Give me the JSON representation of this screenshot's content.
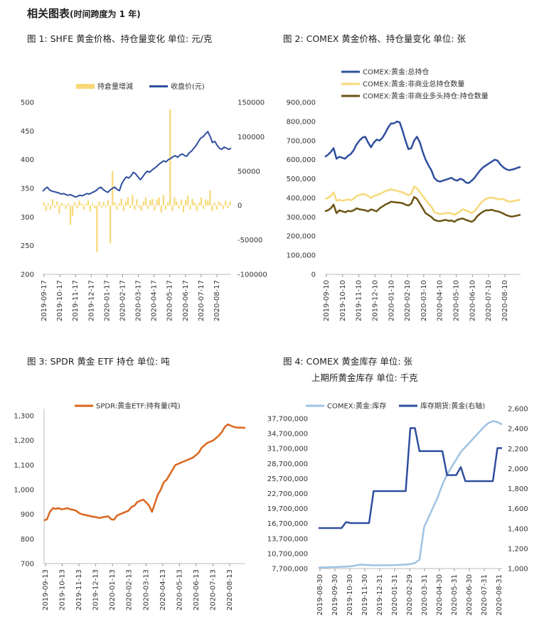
{
  "header": {
    "title": "相关图表",
    "subtitle": "(时间跨度为 1 年)"
  },
  "colors": {
    "dark_blue": "#2f4f9e",
    "light_blue": "#9ec3e3",
    "yellow": "#f7d978",
    "olive": "#6b5414",
    "orange": "#d9661e"
  },
  "chart_data": [
    {
      "id": "c1",
      "type": "line+bar",
      "title": "图 1: SHFE 黄金价格、持仓量变化  单位: 元/克",
      "x_ticks": [
        "2019-09-17",
        "2019-10-17",
        "2019-11-17",
        "2019-12-17",
        "2020-01-17",
        "2020-02-17",
        "2020-03-17",
        "2020-04-17",
        "2020-05-17",
        "2020-06-17",
        "2020-07-17",
        "2020-08-17"
      ],
      "y_left": {
        "min": 200,
        "max": 500,
        "ticks": [
          200,
          250,
          300,
          350,
          400,
          450,
          500
        ]
      },
      "y_right": {
        "min": -100000,
        "max": 150000,
        "ticks": [
          "-100000",
          "-50000",
          "0",
          "50000",
          "100000",
          "150000"
        ]
      },
      "legend": [
        "持倉量增減",
        "收盘价(元)"
      ],
      "bar_series": {
        "name": "持倉量增減",
        "axis": "right",
        "values": [
          5000,
          -8000,
          3000,
          -6000,
          9000,
          -3000,
          6000,
          -12000,
          4000,
          2000,
          -5000,
          3000,
          -28000,
          -15000,
          5000,
          -4000,
          7000,
          3000,
          -6000,
          2000,
          8000,
          -9000,
          3000,
          -4000,
          -68000,
          6000,
          -3000,
          5000,
          -2000,
          8000,
          -55000,
          50000,
          5000,
          -6000,
          3000,
          10000,
          -8000,
          6000,
          12000,
          -4000,
          15000,
          -6000,
          9000,
          -3000,
          -8000,
          6000,
          12000,
          -5000,
          8000,
          10000,
          -7000,
          9000,
          12000,
          -10000,
          15000,
          -6000,
          5000,
          140000,
          -8000,
          12000,
          6000,
          -4000,
          9000,
          -10000,
          8000,
          14000,
          -6000,
          10000,
          5000,
          -8000,
          4000,
          12000,
          -5000,
          9000,
          7000,
          22000,
          -8000,
          4000,
          -6000,
          6000,
          3000,
          -5000,
          7000,
          -4000,
          6000
        ]
      },
      "line_series": {
        "name": "收盘价(元)",
        "axis": "left",
        "values": [
          345,
          349,
          352,
          347,
          345,
          344,
          343,
          342,
          340,
          341,
          339,
          338,
          339,
          337,
          335,
          336,
          338,
          337,
          339,
          341,
          340,
          342,
          344,
          346,
          350,
          352,
          348,
          345,
          343,
          347,
          350,
          352,
          348,
          346,
          358,
          365,
          370,
          368,
          372,
          378,
          375,
          370,
          365,
          370,
          376,
          380,
          378,
          382,
          385,
          388,
          392,
          395,
          398,
          396,
          400,
          402,
          405,
          407,
          404,
          408,
          410,
          407,
          406,
          412,
          415,
          420,
          425,
          432,
          438,
          440,
          445,
          449,
          440,
          430,
          432,
          425,
          420,
          418,
          422,
          420,
          418,
          420
        ]
      }
    },
    {
      "id": "c2",
      "type": "line",
      "title": "图 2: COMEX 黄金价格、持仓量变化  单位: 张",
      "x_ticks": [
        "2019-09-10",
        "2019-10-10",
        "2019-11-10",
        "2019-12-10",
        "2020-01-10",
        "2020-02-10",
        "2020-03-10",
        "2020-04-10",
        "2020-05-10",
        "2020-06-10",
        "2020-07-10",
        "2020-08-10"
      ],
      "y": {
        "min": 0,
        "max": 900000,
        "ticks": [
          "0",
          "100,000",
          "200,000",
          "300,000",
          "400,000",
          "500,000",
          "600,000",
          "700,000",
          "800,000",
          "900,000"
        ]
      },
      "series": [
        {
          "name": "COMEX:黄金:总持仓",
          "color_key": "dark_blue",
          "values": [
            615000,
            625000,
            640000,
            660000,
            605000,
            615000,
            610000,
            605000,
            620000,
            630000,
            650000,
            680000,
            700000,
            715000,
            720000,
            690000,
            665000,
            690000,
            705000,
            700000,
            715000,
            740000,
            770000,
            790000,
            790000,
            800000,
            795000,
            750000,
            700000,
            655000,
            660000,
            700000,
            720000,
            690000,
            640000,
            600000,
            570000,
            545000,
            505000,
            490000,
            485000,
            490000,
            495000,
            500000,
            505000,
            495000,
            490000,
            500000,
            495000,
            480000,
            478000,
            490000,
            505000,
            525000,
            545000,
            560000,
            570000,
            580000,
            590000,
            600000,
            595000,
            575000,
            560000,
            550000,
            545000,
            548000,
            552000,
            558000,
            562000
          ]
        },
        {
          "name": "COMEX:黄金:非商业总持仓数量",
          "color_key": "yellow",
          "values": [
            395000,
            400000,
            410000,
            430000,
            385000,
            390000,
            385000,
            388000,
            392000,
            388000,
            395000,
            410000,
            415000,
            420000,
            418000,
            410000,
            400000,
            410000,
            415000,
            420000,
            428000,
            435000,
            440000,
            445000,
            440000,
            438000,
            432000,
            430000,
            420000,
            415000,
            420000,
            460000,
            450000,
            430000,
            410000,
            390000,
            370000,
            355000,
            325000,
            320000,
            315000,
            318000,
            320000,
            322000,
            318000,
            312000,
            320000,
            330000,
            340000,
            335000,
            328000,
            320000,
            330000,
            350000,
            370000,
            385000,
            395000,
            400000,
            402000,
            398000,
            395000,
            392000,
            395000,
            385000,
            380000,
            382000,
            385000,
            388000,
            390000
          ]
        },
        {
          "name": "COMEX:黄金:非商业多头持仓:持仓数量",
          "color_key": "olive",
          "values": [
            330000,
            335000,
            345000,
            365000,
            320000,
            335000,
            330000,
            325000,
            332000,
            330000,
            335000,
            345000,
            340000,
            338000,
            335000,
            330000,
            340000,
            335000,
            330000,
            345000,
            355000,
            365000,
            372000,
            380000,
            378000,
            376000,
            375000,
            372000,
            365000,
            360000,
            370000,
            405000,
            395000,
            370000,
            345000,
            320000,
            310000,
            300000,
            285000,
            280000,
            278000,
            282000,
            285000,
            280000,
            282000,
            275000,
            285000,
            290000,
            292000,
            285000,
            280000,
            275000,
            285000,
            305000,
            318000,
            328000,
            335000,
            335000,
            338000,
            332000,
            330000,
            325000,
            318000,
            310000,
            305000,
            302000,
            305000,
            308000,
            312000
          ]
        }
      ]
    },
    {
      "id": "c3",
      "type": "line",
      "title": "图 3: SPDR 黄金 ETF 持仓  单位: 吨",
      "x_ticks": [
        "2019-09-13",
        "2019-10-13",
        "2019-11-13",
        "2019-12-13",
        "2020-01-13",
        "2020-02-13",
        "2020-03-13",
        "2020-04-13",
        "2020-05-13",
        "2020-06-13",
        "2020-07-13",
        "2020-08-13"
      ],
      "y": {
        "min": 700,
        "max": 1300,
        "ticks": [
          "700",
          "800",
          "900",
          "1,000",
          "1,100",
          "1,200",
          "1,300"
        ]
      },
      "series": [
        {
          "name": "SPDR:黄金ETF:持有量(吨)",
          "color_key": "orange",
          "values": [
            875,
            880,
            910,
            925,
            922,
            925,
            920,
            922,
            925,
            920,
            918,
            915,
            905,
            900,
            898,
            895,
            892,
            890,
            888,
            885,
            888,
            890,
            892,
            880,
            878,
            895,
            900,
            905,
            910,
            915,
            930,
            935,
            950,
            955,
            960,
            948,
            935,
            910,
            945,
            980,
            1000,
            1030,
            1040,
            1060,
            1080,
            1100,
            1105,
            1110,
            1115,
            1120,
            1125,
            1130,
            1140,
            1150,
            1170,
            1180,
            1190,
            1195,
            1200,
            1210,
            1220,
            1235,
            1255,
            1265,
            1260,
            1255,
            1252,
            1252,
            1252,
            1250
          ]
        }
      ]
    },
    {
      "id": "c4",
      "type": "line",
      "title": "图 4: COMEX 黄金库存  单位: 张",
      "subtitle": "上期所黄金库存  单位: 千克",
      "x_ticks": [
        "2019-08-30",
        "2019-09-30",
        "2019-10-30",
        "2019-11-30",
        "2019-12-31",
        "2020-01-31",
        "2020-02-29",
        "2020-03-31",
        "2020-04-30",
        "2020-05-31",
        "2020-06-30",
        "2020-07-31",
        "2020-08-31"
      ],
      "y_left": {
        "min": 7700000,
        "max": 37700000,
        "ticks": [
          "7,700,000",
          "10,700,000",
          "13,700,000",
          "16,700,000",
          "19,700,000",
          "22,700,000",
          "25,700,000",
          "28,700,000",
          "31,700,000",
          "34,700,000",
          "37,700,000"
        ]
      },
      "y_right": {
        "min": 1000,
        "max": 2600,
        "ticks": [
          "1,000",
          "1,200",
          "1,400",
          "1,600",
          "1,800",
          "2,000",
          "2,200",
          "2,400",
          "2,600"
        ]
      },
      "series": [
        {
          "name": "COMEX:黄金:库存",
          "axis": "left",
          "color_key": "light_blue",
          "values": [
            7900000,
            7950000,
            7950000,
            8000000,
            8000000,
            8050000,
            8100000,
            8150000,
            8300000,
            8500000,
            8450000,
            8400000,
            8350000,
            8350000,
            8350000,
            8350000,
            8400000,
            8400000,
            8450000,
            8500000,
            8600000,
            8800000,
            9500000,
            16000000,
            18000000,
            20000000,
            22000000,
            24500000,
            26500000,
            28000000,
            29500000,
            31000000,
            32000000,
            33000000,
            34000000,
            35000000,
            36000000,
            36800000,
            37200000,
            37000000,
            36500000
          ]
        },
        {
          "name": "库存期货:黄金(右轴)",
          "axis": "right",
          "color_key": "dark_blue",
          "values": [
            1405,
            1405,
            1405,
            1405,
            1405,
            1405,
            1465,
            1455,
            1455,
            1455,
            1455,
            1455,
            1775,
            1775,
            1775,
            1775,
            1775,
            1775,
            1775,
            1775,
            2405,
            2405,
            2175,
            2175,
            2175,
            2175,
            2175,
            2175,
            1935,
            1935,
            1935,
            2015,
            1875,
            1875,
            1875,
            1875,
            1875,
            1875,
            1875,
            2205,
            2205
          ]
        }
      ]
    }
  ]
}
